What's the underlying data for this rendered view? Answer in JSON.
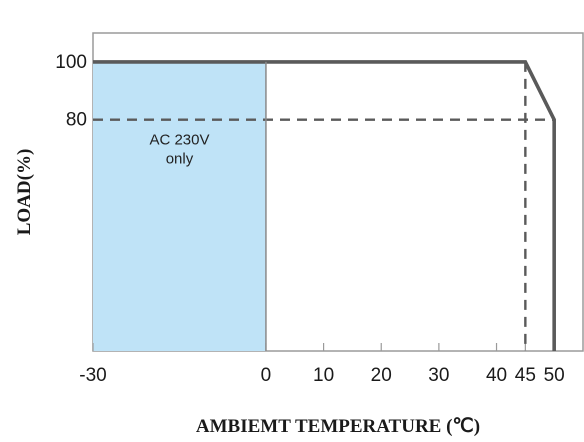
{
  "chart_data": {
    "type": "line",
    "title": "",
    "xlabel": "AMBIEMT TEMPERATURE (℃)",
    "ylabel": "LOAD(%)",
    "xlim": [
      -30,
      55
    ],
    "ylim": [
      0,
      110
    ],
    "grid": false,
    "x_ticks": [
      {
        "value": -30,
        "label": "-30"
      },
      {
        "value": 0,
        "label": "0"
      },
      {
        "value": 10,
        "label": "10"
      },
      {
        "value": 20,
        "label": "20"
      },
      {
        "value": 30,
        "label": "30"
      },
      {
        "value": 40,
        "label": "40"
      },
      {
        "value": 45,
        "label": "45"
      },
      {
        "value": 50,
        "label": "50"
      }
    ],
    "y_ticks": [
      {
        "value": 80,
        "label": "80"
      },
      {
        "value": 100,
        "label": "100"
      }
    ],
    "series": [
      {
        "style": "solid",
        "color": "#5a5a5a",
        "points": [
          [
            -30,
            100
          ],
          [
            45,
            100
          ],
          [
            50,
            80
          ],
          [
            50,
            0
          ]
        ]
      },
      {
        "style": "dashed",
        "color": "#5a5a5a",
        "points": [
          [
            -30,
            80
          ],
          [
            50,
            80
          ]
        ]
      },
      {
        "style": "dashed",
        "color": "#5a5a5a",
        "points": [
          [
            45,
            100
          ],
          [
            45,
            0
          ]
        ]
      }
    ],
    "shaded_region": {
      "x": [
        -30,
        0
      ],
      "y": [
        0,
        100
      ],
      "color": "#bfe3f7",
      "label_lines": [
        "AC 230V",
        "only"
      ]
    },
    "colors": {
      "line": "#5a5a5a",
      "frame": "#9a9a9a",
      "shade": "#bfe3f7"
    }
  }
}
